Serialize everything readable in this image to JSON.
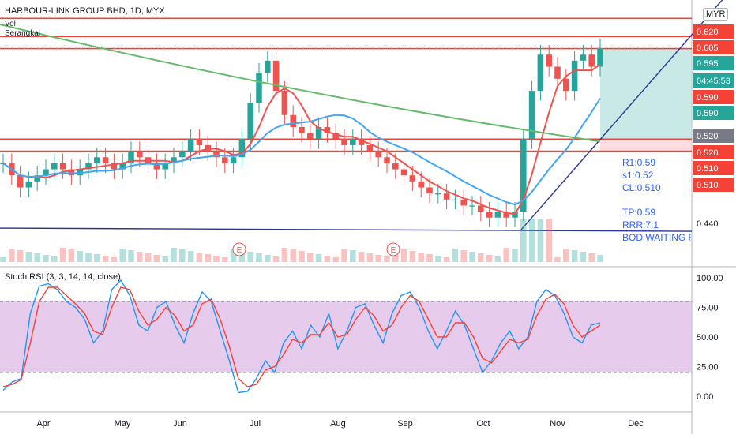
{
  "header": {
    "symbol": "HARBOUR-LINK GROUP BHD, 1D, MYX",
    "vol_label": "Vol",
    "indicator_label": "Serangkai",
    "currency": "MYR"
  },
  "annotations": {
    "r1": "R1:0.59",
    "s1": "s1:0.52",
    "cl": "CL:0.510",
    "tp": "TP:0.59",
    "rrr": "RRR:7:1",
    "note": "BOD WAITING FO"
  },
  "earnings_marker": "E",
  "colors": {
    "up": "#26a69a",
    "down": "#ef5350",
    "ma_red": "#ef5350",
    "ma_blue": "#42a5f5",
    "ma_green": "#66bb6a",
    "trend": "#283593",
    "level": "#f44336",
    "stoch_k": "#2196f3",
    "stoch_d": "#f44336",
    "band": "#e1bee7",
    "target_zone": "#b2dfdb",
    "stop_zone": "#ffcdd2"
  },
  "chart_data": [
    {
      "type": "candlestick",
      "title": "HARBOUR-LINK GROUP BHD, 1D, MYX",
      "x_labels": [
        "Apr",
        "May",
        "Jun",
        "Jul",
        "Aug",
        "Sep",
        "Oct",
        "Nov",
        "Dec"
      ],
      "y_ticks": [
        "0.620",
        "0.605",
        "0.595",
        "0.590",
        "0.590",
        "0.520",
        "0.520",
        "0.510",
        "0.510",
        "0.440"
      ],
      "price_scale_badges": [
        {
          "text": "0.620",
          "color": "#f44336"
        },
        {
          "text": "0.605",
          "color": "#f44336"
        },
        {
          "text": "0.595",
          "color": "#26a69a"
        },
        {
          "text": "04:45:53",
          "color": "#26a69a"
        },
        {
          "text": "0.590",
          "color": "#f44336"
        },
        {
          "text": "0.590",
          "color": "#26a69a"
        },
        {
          "text": "0.520",
          "color": "#787b86"
        },
        {
          "text": "0.520",
          "color": "#f44336"
        },
        {
          "text": "0.510",
          "color": "#f44336"
        },
        {
          "text": "0.510",
          "color": "#f44336"
        }
      ],
      "horizontal_levels": [
        0.62,
        0.605,
        0.595,
        0.52,
        0.51
      ],
      "last_close": 0.595,
      "trendline_support": 0.445,
      "series_closes": [
        0.5,
        0.49,
        0.48,
        0.485,
        0.49,
        0.495,
        0.5,
        0.495,
        0.49,
        0.495,
        0.5,
        0.505,
        0.5,
        0.495,
        0.5,
        0.51,
        0.505,
        0.5,
        0.495,
        0.5,
        0.505,
        0.51,
        0.52,
        0.515,
        0.51,
        0.505,
        0.5,
        0.505,
        0.52,
        0.55,
        0.575,
        0.585,
        0.56,
        0.54,
        0.53,
        0.525,
        0.52,
        0.53,
        0.525,
        0.52,
        0.515,
        0.52,
        0.515,
        0.51,
        0.505,
        0.5,
        0.495,
        0.49,
        0.485,
        0.48,
        0.475,
        0.475,
        0.47,
        0.47,
        0.465,
        0.465,
        0.46,
        0.455,
        0.46,
        0.455,
        0.46,
        0.52,
        0.56,
        0.59,
        0.58,
        0.57,
        0.56,
        0.585,
        0.59,
        0.58,
        0.595
      ]
    },
    {
      "type": "line",
      "title": "Stoch RSI (3, 3, 14, 14, close)",
      "y_ticks": [
        "100.00",
        "75.00",
        "50.00",
        "25.00",
        "0.00"
      ],
      "ylim": [
        0,
        100
      ],
      "band": [
        20,
        80
      ],
      "series": [
        {
          "name": "K",
          "values": [
            5,
            12,
            15,
            70,
            93,
            95,
            90,
            80,
            75,
            65,
            45,
            55,
            90,
            98,
            85,
            60,
            55,
            75,
            80,
            60,
            45,
            70,
            88,
            80,
            55,
            30,
            3,
            4,
            15,
            30,
            20,
            45,
            55,
            40,
            60,
            50,
            70,
            40,
            55,
            75,
            78,
            60,
            45,
            70,
            85,
            88,
            75,
            55,
            40,
            55,
            72,
            60,
            40,
            20,
            30,
            45,
            55,
            40,
            50,
            80,
            90,
            85,
            70,
            50,
            45,
            60,
            62
          ]
        },
        {
          "name": "D",
          "values": [
            8,
            10,
            14,
            45,
            80,
            92,
            92,
            85,
            78,
            70,
            55,
            52,
            75,
            92,
            90,
            72,
            60,
            65,
            75,
            68,
            55,
            60,
            78,
            82,
            65,
            42,
            15,
            8,
            10,
            22,
            25,
            35,
            48,
            45,
            52,
            52,
            62,
            50,
            52,
            65,
            75,
            68,
            55,
            60,
            75,
            85,
            80,
            65,
            50,
            50,
            62,
            62,
            50,
            32,
            28,
            38,
            48,
            45,
            48,
            68,
            82,
            86,
            78,
            60,
            50,
            55,
            60
          ]
        }
      ]
    }
  ]
}
